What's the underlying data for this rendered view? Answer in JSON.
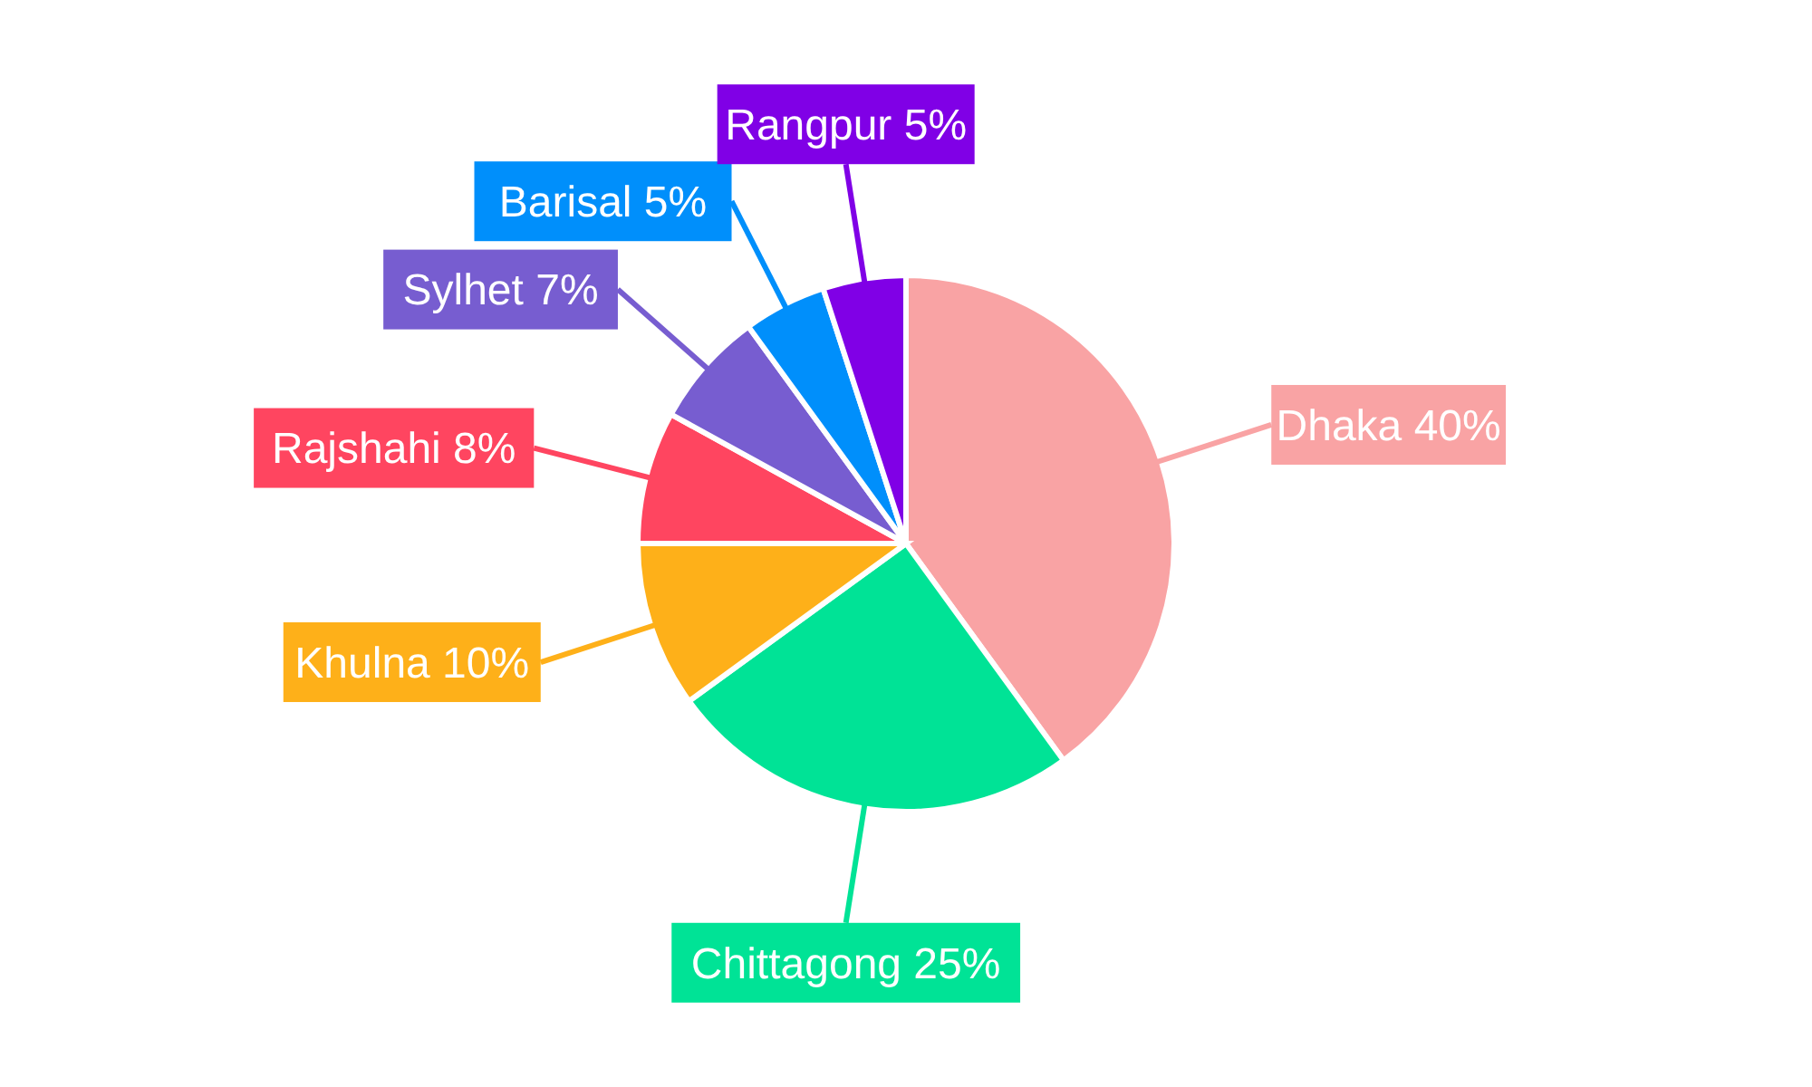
{
  "chart_data": {
    "type": "pie",
    "categories": [
      "Dhaka",
      "Chittagong",
      "Khulna",
      "Rajshahi",
      "Sylhet",
      "Barisal",
      "Rangpur"
    ],
    "values": [
      40,
      25,
      10,
      8,
      7,
      5,
      5
    ],
    "value_labels": [
      "40%",
      "25%",
      "10%",
      "8%",
      "7%",
      "5%",
      "5%"
    ],
    "colors": [
      "#f9a3a4",
      "#00e396",
      "#feb019",
      "#ff4560",
      "#775dd0",
      "#008ffb",
      "#8000e6"
    ]
  }
}
